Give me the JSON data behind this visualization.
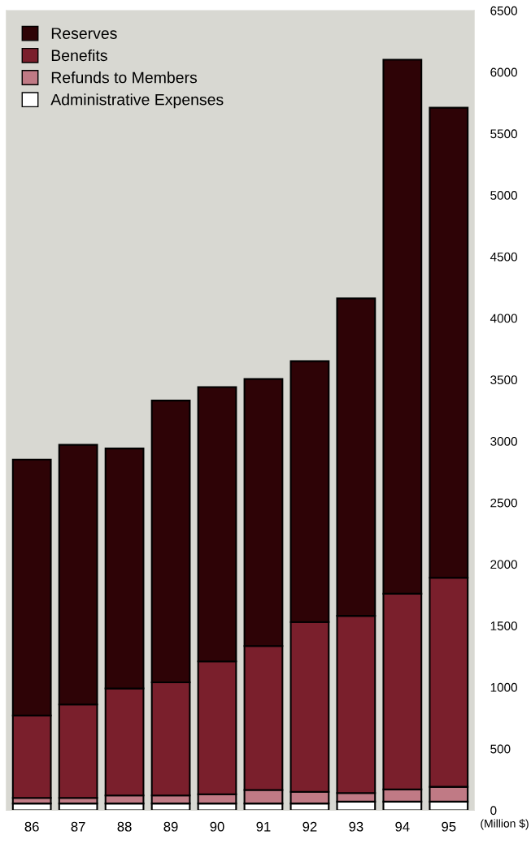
{
  "chart_data": {
    "type": "bar",
    "stacked": true,
    "ylabel": "(Million $)",
    "categories": [
      "86",
      "87",
      "88",
      "89",
      "90",
      "91",
      "92",
      "93",
      "94",
      "95"
    ],
    "series": [
      {
        "name": "Administrative Expenses",
        "color": "#ffffff",
        "values": [
          55,
          55,
          55,
          55,
          55,
          55,
          55,
          70,
          70,
          70
        ]
      },
      {
        "name": "Refunds to Members",
        "color": "#c07a85",
        "values": [
          45,
          45,
          65,
          65,
          75,
          110,
          95,
          70,
          100,
          120
        ]
      },
      {
        "name": "Benefits",
        "color": "#7a1f2c",
        "values": [
          670,
          760,
          870,
          920,
          1080,
          1170,
          1380,
          1440,
          1590,
          1700
        ]
      },
      {
        "name": "Reserves",
        "color": "#2e0306",
        "values": [
          2080,
          2110,
          1950,
          2290,
          2230,
          2170,
          2120,
          2580,
          4340,
          3820
        ]
      }
    ],
    "ylim": [
      0,
      6500
    ],
    "yticks": [
      0,
      500,
      1000,
      1500,
      2000,
      2500,
      3000,
      3500,
      4000,
      4500,
      5000,
      5500,
      6000,
      6500
    ],
    "legend": "top left"
  }
}
